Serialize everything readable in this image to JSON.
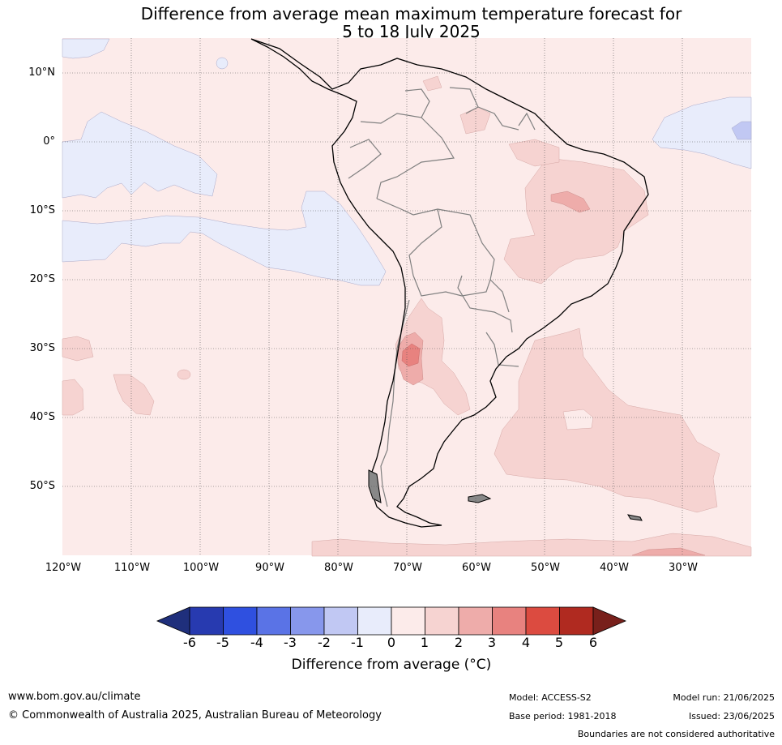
{
  "title": {
    "line1": "Difference from average mean maximum temperature forecast for",
    "line2": "5 to 18 July 2025"
  },
  "axes": {
    "lat_labels": [
      "10°N",
      "0°",
      "10°S",
      "20°S",
      "30°S",
      "40°S",
      "50°S"
    ],
    "lat_values": [
      10,
      0,
      -10,
      -20,
      -30,
      -40,
      -50
    ],
    "lon_labels": [
      "120°W",
      "110°W",
      "100°W",
      "90°W",
      "80°W",
      "70°W",
      "60°W",
      "50°W",
      "40°W",
      "30°W"
    ],
    "lon_values": [
      -120,
      -110,
      -100,
      -90,
      -80,
      -70,
      -60,
      -50,
      -40,
      -30
    ],
    "lon_range": [
      -120,
      -20
    ],
    "lat_range": [
      -60,
      15
    ],
    "gridlines": true
  },
  "colorbar": {
    "title": "Difference from average (°C)",
    "ticks": [
      "-6",
      "-5",
      "-4",
      "-3",
      "-2",
      "-1",
      "0",
      "1",
      "2",
      "3",
      "4",
      "5",
      "6"
    ],
    "colors": [
      "#273ab0",
      "#2f50e0",
      "#5a73e6",
      "#8797ec",
      "#c1c8f3",
      "#e8ecfb",
      "#fcebea",
      "#f6d3d1",
      "#eeacaa",
      "#e8827f",
      "#dc4b40",
      "#b02a20"
    ],
    "under_color": "#1f2f7c",
    "over_color": "#78201b"
  },
  "colors": {
    "background_fill": "#fcebea",
    "coast": "#000000",
    "borders": "#808080"
  },
  "footer": {
    "url": "www.bom.gov.au/climate",
    "copyright": "© Commonwealth of Australia 2025, Australian Bureau of Meteorology",
    "model": "Model: ACCESS-S2",
    "base_period": "Base period: 1981-2018",
    "model_run": "Model run: 21/06/2025",
    "issued": "Issued: 23/06/2025",
    "boundaries_note": "Boundaries are not considered authoritative"
  }
}
